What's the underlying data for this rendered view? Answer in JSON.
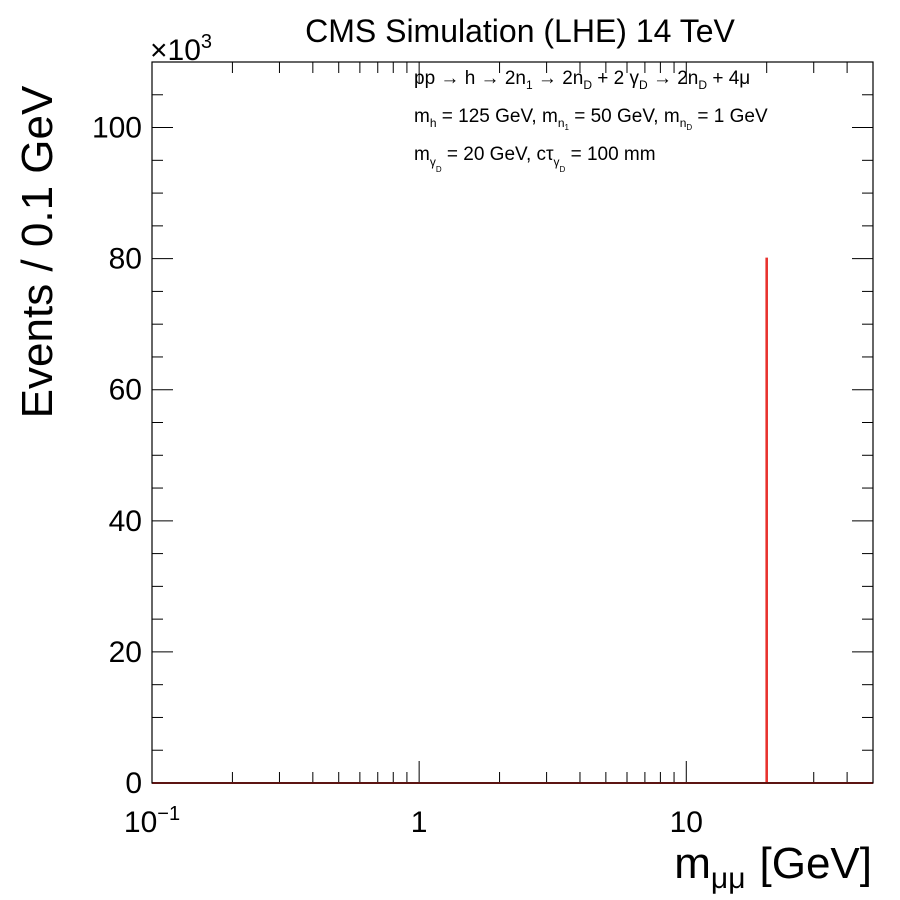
{
  "chart_data": {
    "type": "line",
    "title": "CMS Simulation (LHE) 14 TeV",
    "xlabel": "m",
    "xlabel_sub": "μμ",
    "xlabel_unit": "[GeV]",
    "ylabel": "Events / 0.1 GeV",
    "y_multiplier": "×10",
    "y_multiplier_exp": "3",
    "x_scale": "log",
    "xlim": [
      0.1,
      50
    ],
    "ylim": [
      0,
      110
    ],
    "x_ticks": [
      {
        "value": 0.1,
        "base": "10",
        "exp": "−1"
      },
      {
        "value": 1,
        "base": "1",
        "exp": ""
      },
      {
        "value": 10,
        "base": "10",
        "exp": ""
      }
    ],
    "y_ticks": [
      {
        "value": 0,
        "label": "0"
      },
      {
        "value": 20,
        "label": "20"
      },
      {
        "value": 40,
        "label": "40"
      },
      {
        "value": 60,
        "label": "60"
      },
      {
        "value": 80,
        "label": "80"
      },
      {
        "value": 100,
        "label": "100"
      }
    ],
    "series": [
      {
        "color": "#e8322e",
        "points": [
          [
            0.1,
            0
          ],
          [
            19.95,
            0
          ],
          [
            19.95,
            80
          ],
          [
            20.05,
            80
          ],
          [
            20.05,
            0
          ],
          [
            50,
            0
          ]
        ]
      }
    ],
    "grid": false,
    "legend": "none",
    "annotations": {
      "process": {
        "p1": "pp → h → 2n",
        "s1": "1",
        "p2": " → 2n",
        "s2": "D",
        "p3": " + 2 γ",
        "s3": "D",
        "p4": " → 2n",
        "s4": "D",
        "p5": " + 4μ"
      },
      "masses": {
        "a": "m",
        "a_sub": "h",
        "b": " = 125 GeV, m",
        "b_sub": "n",
        "b_subsub": "1",
        "c": " = 50 GeV, m",
        "c_sub": "n",
        "c_subsub": "D",
        "d": " = 1 GeV"
      },
      "dark_photon": {
        "a": "m",
        "a_sub": "γ",
        "a_subsub": "D",
        "b": " = 20 GeV, cτ",
        "b_sub": "γ",
        "b_subsub": "D",
        "c": " = 100 mm"
      }
    }
  }
}
